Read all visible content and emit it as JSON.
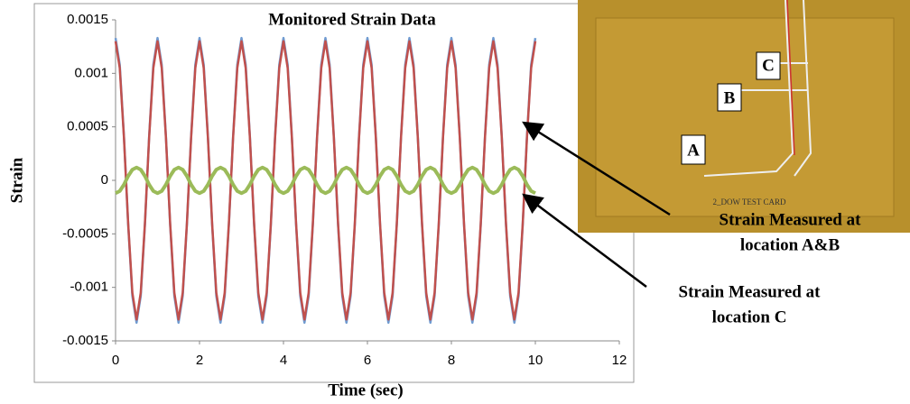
{
  "chart_data": {
    "type": "line",
    "title": "Monitored Strain Data",
    "x_label": "Time (sec)",
    "y_label": "Strain",
    "x": [
      0,
      0.1,
      0.2,
      0.3,
      0.4,
      0.5,
      0.6,
      0.7,
      0.8,
      0.9,
      1,
      1.1,
      1.2,
      1.3,
      1.4,
      1.5,
      1.6,
      1.7,
      1.8,
      1.9,
      2,
      2.1,
      2.2,
      2.3,
      2.4,
      2.5,
      2.6,
      2.7,
      2.8,
      2.9,
      3,
      3.1,
      3.2,
      3.3,
      3.4,
      3.5,
      3.6,
      3.7,
      3.8,
      3.9,
      4,
      4.1,
      4.2,
      4.3,
      4.4,
      4.5,
      4.6,
      4.7,
      4.8,
      4.9,
      5,
      5.1,
      5.2,
      5.3,
      5.4,
      5.5,
      5.6,
      5.7,
      5.8,
      5.9,
      6,
      6.1,
      6.2,
      6.3,
      6.4,
      6.5,
      6.6,
      6.7,
      6.8,
      6.9,
      7,
      7.1,
      7.2,
      7.3,
      7.4,
      7.5,
      7.6,
      7.7,
      7.8,
      7.9,
      8,
      8.1,
      8.2,
      8.3,
      8.4,
      8.5,
      8.6,
      8.7,
      8.8,
      8.9,
      9,
      9.1,
      9.2,
      9.3,
      9.4,
      9.5,
      9.6,
      9.7,
      9.8,
      9.9,
      10
    ],
    "series": [
      {
        "color": "#6f9bd1",
        "values": [
          0.00133,
          0.00108,
          0.00041,
          -0.00041,
          -0.00108,
          -0.00133,
          -0.00108,
          -0.00041,
          0.00041,
          0.00108,
          0.00133,
          0.00108,
          0.00041,
          -0.00041,
          -0.00108,
          -0.00133,
          -0.00108,
          -0.00041,
          0.00041,
          0.00108,
          0.00133,
          0.00108,
          0.00041,
          -0.00041,
          -0.00108,
          -0.00133,
          -0.00108,
          -0.00041,
          0.00041,
          0.00108,
          0.00133,
          0.00108,
          0.00041,
          -0.00041,
          -0.00108,
          -0.00133,
          -0.00108,
          -0.00041,
          0.00041,
          0.00108,
          0.00133,
          0.00108,
          0.00041,
          -0.00041,
          -0.00108,
          -0.00133,
          -0.00108,
          -0.00041,
          0.00041,
          0.00108,
          0.00133,
          0.00108,
          0.00041,
          -0.00041,
          -0.00108,
          -0.00133,
          -0.00108,
          -0.00041,
          0.00041,
          0.00108,
          0.00133,
          0.00108,
          0.00041,
          -0.00041,
          -0.00108,
          -0.00133,
          -0.00108,
          -0.00041,
          0.00041,
          0.00108,
          0.00133,
          0.00108,
          0.00041,
          -0.00041,
          -0.00108,
          -0.00133,
          -0.00108,
          -0.00041,
          0.00041,
          0.00108,
          0.00133,
          0.00108,
          0.00041,
          -0.00041,
          -0.00108,
          -0.00133,
          -0.00108,
          -0.00041,
          0.00041,
          0.00108,
          0.00133,
          0.00108,
          0.00041,
          -0.00041,
          -0.00108,
          -0.00133,
          -0.00108,
          -0.00041,
          0.00041,
          0.00108,
          0.00133
        ]
      },
      {
        "color": "#c0504d",
        "values": [
          0.0013,
          0.00105,
          0.0004,
          -0.0004,
          -0.00105,
          -0.0013,
          -0.00105,
          -0.0004,
          0.0004,
          0.00105,
          0.0013,
          0.00105,
          0.0004,
          -0.0004,
          -0.00105,
          -0.0013,
          -0.00105,
          -0.0004,
          0.0004,
          0.00105,
          0.0013,
          0.00105,
          0.0004,
          -0.0004,
          -0.00105,
          -0.0013,
          -0.00105,
          -0.0004,
          0.0004,
          0.00105,
          0.0013,
          0.00105,
          0.0004,
          -0.0004,
          -0.00105,
          -0.0013,
          -0.00105,
          -0.0004,
          0.0004,
          0.00105,
          0.0013,
          0.00105,
          0.0004,
          -0.0004,
          -0.00105,
          -0.0013,
          -0.00105,
          -0.0004,
          0.0004,
          0.00105,
          0.0013,
          0.00105,
          0.0004,
          -0.0004,
          -0.00105,
          -0.0013,
          -0.00105,
          -0.0004,
          0.0004,
          0.00105,
          0.0013,
          0.00105,
          0.0004,
          -0.0004,
          -0.00105,
          -0.0013,
          -0.00105,
          -0.0004,
          0.0004,
          0.00105,
          0.0013,
          0.00105,
          0.0004,
          -0.0004,
          -0.00105,
          -0.0013,
          -0.00105,
          -0.0004,
          0.0004,
          0.00105,
          0.0013,
          0.00105,
          0.0004,
          -0.0004,
          -0.00105,
          -0.0013,
          -0.00105,
          -0.0004,
          0.0004,
          0.00105,
          0.0013,
          0.00105,
          0.0004,
          -0.0004,
          -0.00105,
          -0.0013,
          -0.00105,
          -0.0004,
          0.0004,
          0.00105,
          0.0013
        ]
      },
      {
        "color": "#9bbb59",
        "values": [
          -0.00012,
          -0.0001,
          -4e-05,
          4e-05,
          0.0001,
          0.00012,
          0.0001,
          4e-05,
          -4e-05,
          -0.0001,
          -0.00012,
          -0.0001,
          -4e-05,
          4e-05,
          0.0001,
          0.00012,
          0.0001,
          4e-05,
          -4e-05,
          -0.0001,
          -0.00012,
          -0.0001,
          -4e-05,
          4e-05,
          0.0001,
          0.00012,
          0.0001,
          4e-05,
          -4e-05,
          -0.0001,
          -0.00012,
          -0.0001,
          -4e-05,
          4e-05,
          0.0001,
          0.00012,
          0.0001,
          4e-05,
          -4e-05,
          -0.0001,
          -0.00012,
          -0.0001,
          -4e-05,
          4e-05,
          0.0001,
          0.00012,
          0.0001,
          4e-05,
          -4e-05,
          -0.0001,
          -0.00012,
          -0.0001,
          -4e-05,
          4e-05,
          0.0001,
          0.00012,
          0.0001,
          4e-05,
          -4e-05,
          -0.0001,
          -0.00012,
          -0.0001,
          -4e-05,
          4e-05,
          0.0001,
          0.00012,
          0.0001,
          4e-05,
          -4e-05,
          -0.0001,
          -0.00012,
          -0.0001,
          -4e-05,
          4e-05,
          0.0001,
          0.00012,
          0.0001,
          4e-05,
          -4e-05,
          -0.0001,
          -0.00012,
          -0.0001,
          -4e-05,
          4e-05,
          0.0001,
          0.00012,
          0.0001,
          4e-05,
          -4e-05,
          -0.0001,
          -0.00012,
          -0.0001,
          -4e-05,
          4e-05,
          0.0001,
          0.00012,
          0.0001,
          4e-05,
          -4e-05,
          -0.0001,
          -0.00012
        ]
      }
    ],
    "xlim": [
      0,
      12
    ],
    "xticks": [
      0,
      2,
      4,
      6,
      8,
      10,
      12
    ],
    "ylim": [
      -0.0015,
      0.0015
    ],
    "yticks": [
      -0.0015,
      -0.001,
      -0.0005,
      0,
      0.0005,
      0.001,
      0.0015
    ],
    "annotations": [
      [
        "Strain Measured at",
        "location A&B"
      ],
      [
        "Strain Measured at",
        "location C"
      ]
    ]
  },
  "photo": {
    "labels": [
      "A",
      "B",
      "C"
    ],
    "caption": "2_DOW TEST CARD"
  }
}
